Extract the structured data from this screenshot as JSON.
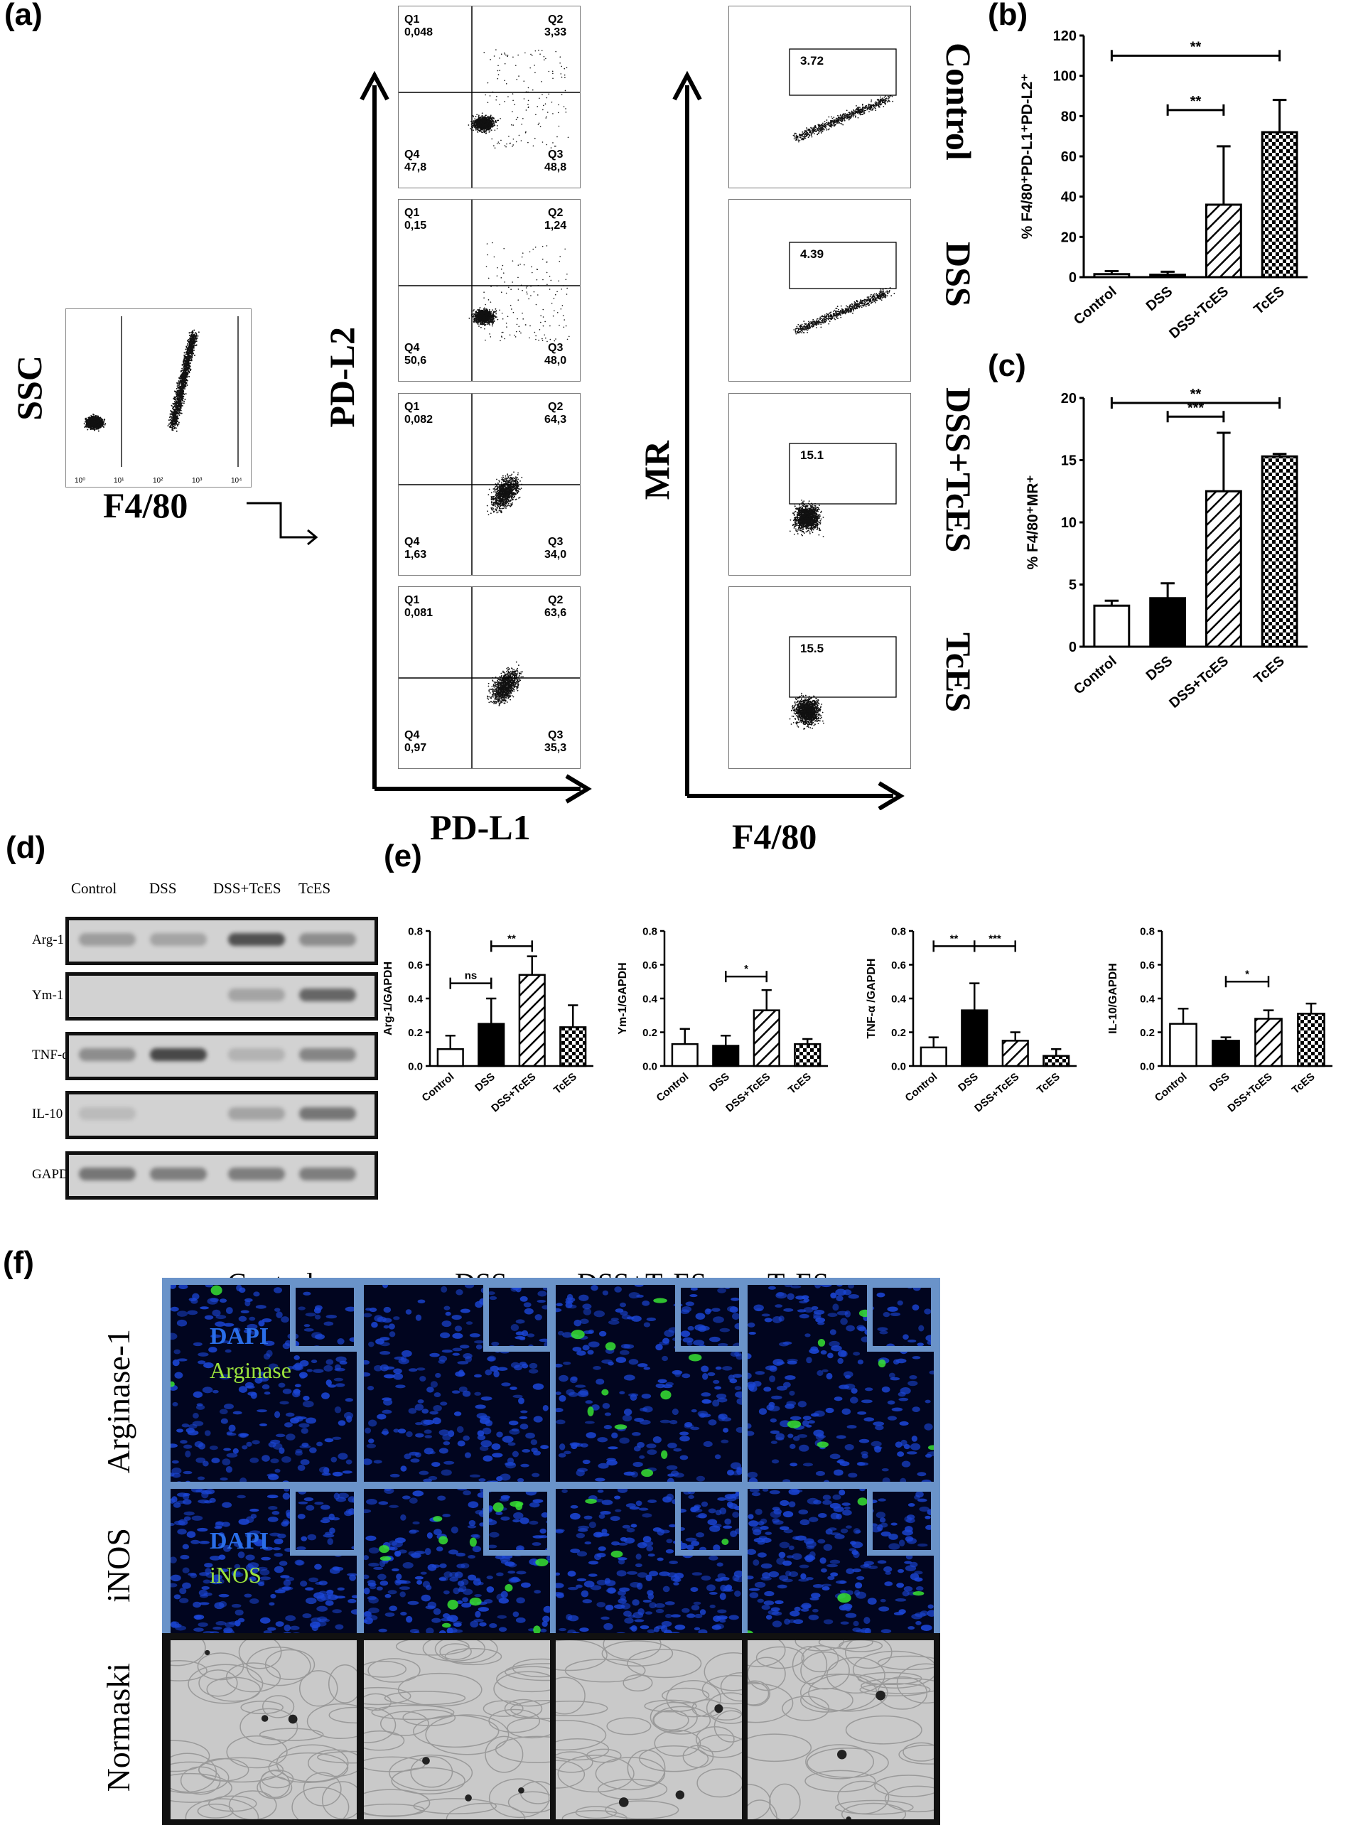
{
  "panel_labels": {
    "a": "(a)",
    "b": "(b)",
    "c": "(c)",
    "d": "(d)",
    "e": "(e)",
    "f": "(f)"
  },
  "panel_a": {
    "gate_plot": {
      "y_label": "SSC",
      "x_label": "F4/80"
    },
    "pd_axes": {
      "y": "PD-L2",
      "x": "PD-L1"
    },
    "mr_axes": {
      "y": "MR",
      "x": "F4/80"
    },
    "row_labels": [
      "Control",
      "DSS",
      "DSS+TcES",
      "TcES"
    ],
    "quadrants": [
      {
        "q1": "Q1",
        "q1v": "0,048",
        "q2": "Q2",
        "q2v": "3,33",
        "q3": "Q3",
        "q3v": "48,8",
        "q4": "Q4",
        "q4v": "47,8"
      },
      {
        "q1": "Q1",
        "q1v": "0,15",
        "q2": "Q2",
        "q2v": "1,24",
        "q3": "Q3",
        "q3v": "48,0",
        "q4": "Q4",
        "q4v": "50,6"
      },
      {
        "q1": "Q1",
        "q1v": "0,082",
        "q2": "Q2",
        "q2v": "64,3",
        "q3": "Q3",
        "q3v": "34,0",
        "q4": "Q4",
        "q4v": "1,63"
      },
      {
        "q1": "Q1",
        "q1v": "0,081",
        "q2": "Q2",
        "q2v": "63,6",
        "q3": "Q3",
        "q3v": "35,3",
        "q4": "Q4",
        "q4v": "0,97"
      }
    ],
    "mr_gates": [
      "3.72",
      "4.39",
      "15.1",
      "15.5"
    ],
    "log_ticks": [
      "10⁰",
      "10¹",
      "10²",
      "10³",
      "10⁴"
    ]
  },
  "chart_data": [
    {
      "type": "bar",
      "id": "b",
      "ylabel": "% F4/80⁺PD-L1⁺PD-L2⁺",
      "categories": [
        "Control",
        "DSS",
        "DSS+TcES",
        "TcES"
      ],
      "values": [
        1.5,
        1.2,
        36,
        72
      ],
      "errors": [
        1.5,
        1.5,
        29,
        16
      ],
      "ylim": [
        0,
        120
      ],
      "yticks": [
        "0",
        "20",
        "40",
        "60",
        "80",
        "100",
        "120"
      ],
      "sig": [
        {
          "from": 0,
          "to": 3,
          "label": "**"
        },
        {
          "from": 1,
          "to": 2,
          "label": "**"
        }
      ]
    },
    {
      "type": "bar",
      "id": "c",
      "ylabel": "% F4/80⁺MR⁺",
      "categories": [
        "Control",
        "DSS",
        "DSS+TcES",
        "TcES"
      ],
      "values": [
        3.3,
        3.9,
        12.5,
        15.3
      ],
      "errors": [
        0.4,
        1.2,
        4.7,
        0.2
      ],
      "ylim": [
        0,
        20
      ],
      "yticks": [
        "0",
        "5",
        "10",
        "15",
        "20"
      ],
      "sig": [
        {
          "from": 0,
          "to": 3,
          "label": "**"
        },
        {
          "from": 1,
          "to": 2,
          "label": "***"
        }
      ]
    },
    {
      "type": "bar",
      "id": "e1",
      "ylabel": "Arg-1/GAPDH",
      "categories": [
        "Control",
        "DSS",
        "DSS+TcES",
        "TcES"
      ],
      "values": [
        0.1,
        0.25,
        0.54,
        0.23
      ],
      "errors": [
        0.08,
        0.15,
        0.11,
        0.13
      ],
      "ylim": [
        0,
        0.8
      ],
      "yticks": [
        "0.0",
        "0.2",
        "0.4",
        "0.6",
        "0.8"
      ],
      "sig": [
        {
          "from": 0,
          "to": 1,
          "label": "ns"
        },
        {
          "from": 1,
          "to": 2,
          "label": "**"
        }
      ]
    },
    {
      "type": "bar",
      "id": "e2",
      "ylabel": "Ym-1/GAPDH",
      "categories": [
        "Control",
        "DSS",
        "DSS+TcES",
        "TcES"
      ],
      "values": [
        0.13,
        0.12,
        0.33,
        0.13
      ],
      "errors": [
        0.09,
        0.06,
        0.12,
        0.03
      ],
      "ylim": [
        0,
        0.8
      ],
      "yticks": [
        "0.0",
        "0.2",
        "0.4",
        "0.6",
        "0.8"
      ],
      "sig": [
        {
          "from": 1,
          "to": 2,
          "label": "*"
        }
      ]
    },
    {
      "type": "bar",
      "id": "e3",
      "ylabel": "TNF-α /GAPDH",
      "categories": [
        "Control",
        "DSS",
        "DSS+TcES",
        "TcES"
      ],
      "values": [
        0.11,
        0.33,
        0.15,
        0.06
      ],
      "errors": [
        0.06,
        0.16,
        0.05,
        0.04
      ],
      "ylim": [
        0,
        0.8
      ],
      "yticks": [
        "0.0",
        "0.2",
        "0.4",
        "0.6",
        "0.8"
      ],
      "sig": [
        {
          "from": 0,
          "to": 1,
          "label": "**"
        },
        {
          "from": 1,
          "to": 2,
          "label": "***"
        }
      ]
    },
    {
      "type": "bar",
      "id": "e4",
      "ylabel": "IL-10/GAPDH",
      "categories": [
        "Control",
        "DSS",
        "DSS+TcES",
        "TcES"
      ],
      "values": [
        0.25,
        0.15,
        0.28,
        0.31
      ],
      "errors": [
        0.09,
        0.02,
        0.05,
        0.06
      ],
      "ylim": [
        0,
        0.8
      ],
      "yticks": [
        "0.0",
        "0.2",
        "0.4",
        "0.6",
        "0.8"
      ],
      "sig": [
        {
          "from": 1,
          "to": 2,
          "label": "*"
        }
      ]
    }
  ],
  "panel_d": {
    "columns": [
      "Control",
      "DSS",
      "DSS+TcES",
      "TcES"
    ],
    "rows": [
      "Arg-1",
      "Ym-1",
      "TNF-α",
      "IL-10",
      "GAPDH"
    ],
    "band_intensity": [
      [
        0.35,
        0.3,
        0.85,
        0.45
      ],
      [
        0.0,
        0.0,
        0.3,
        0.7
      ],
      [
        0.45,
        0.9,
        0.2,
        0.5
      ],
      [
        0.15,
        0.0,
        0.3,
        0.6
      ],
      [
        0.6,
        0.55,
        0.55,
        0.55
      ]
    ]
  },
  "panel_f": {
    "columns": [
      "Control",
      "DSS",
      "DSS+TcES",
      "TcES"
    ],
    "rows": [
      "Arginase-1",
      "iNOS",
      "Normaski"
    ],
    "legend_arg": {
      "dapi": "DAPI",
      "marker": "Arginase"
    },
    "legend_inos": {
      "dapi": "DAPI",
      "marker": "iNOS"
    },
    "colors": {
      "dapi": "#1b46d6",
      "marker": "#9be33c",
      "frame": "#6a93c9"
    }
  }
}
